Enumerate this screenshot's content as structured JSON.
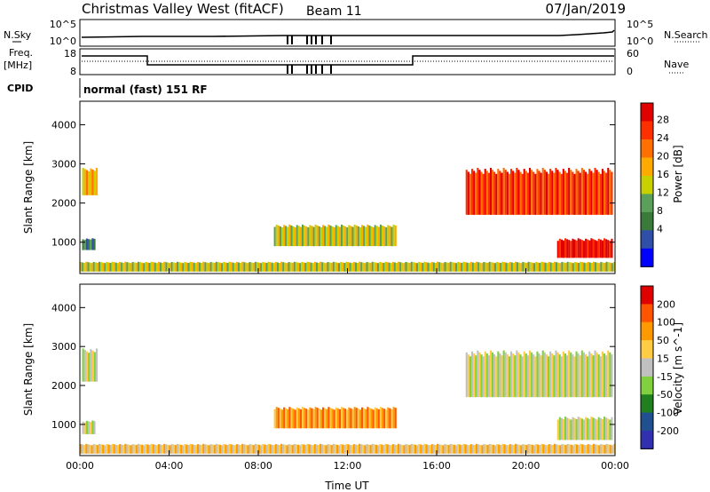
{
  "header": {
    "site": "Christmas Valley West (fitACF)",
    "beam": "Beam 11",
    "date": "07/Jan/2019"
  },
  "status": {
    "nsky_label": "N.Sky",
    "nsky_ticks": [
      "10^5",
      "10^0"
    ],
    "nsearch_label": "N.Search",
    "nsearch_ticks": [
      "10^5",
      "10^0"
    ],
    "freq_label": "Freq.",
    "freq_unit": "[MHz]",
    "freq_ticks": [
      "18",
      "8"
    ],
    "nave_label": "Nave",
    "nave_ticks": [
      "60",
      "0"
    ],
    "cpid_label": "CPID",
    "cpid_text": "normal (fast) 151 RF"
  },
  "colors": {
    "power": [
      "#0000ff",
      "#2f4fa8",
      "#3a7a3a",
      "#5aa05a",
      "#c8d000",
      "#ffaa00",
      "#ff7000",
      "#ff3000",
      "#e00000"
    ],
    "velocity": [
      "#3030b0",
      "#205090",
      "#208020",
      "#80d040",
      "#c0c0c0",
      "#ffcc44",
      "#ff9900",
      "#ff5500",
      "#e00000"
    ],
    "ground": "#bbbbbb"
  },
  "chart_data": [
    {
      "type": "heatmap",
      "name": "power",
      "ylabel": "Slant Range [km]",
      "ylim": [
        200,
        4600
      ],
      "y_ticks": [
        "4000",
        "3000",
        "2000",
        "1000"
      ],
      "x_ticks": [
        "00:00",
        "04:00",
        "08:00",
        "12:00",
        "16:00",
        "20:00",
        "00:00"
      ],
      "colorbar_label": "Power [dB]",
      "colorbar_ticks": [
        "28",
        "24",
        "20",
        "16",
        "12",
        "8",
        "4"
      ],
      "regions": [
        {
          "t0": 0.1,
          "t1": 0.8,
          "r0": 2200,
          "r1": 2900,
          "level": 5
        },
        {
          "t0": 0.1,
          "t1": 0.7,
          "r0": 800,
          "r1": 1100,
          "level": 2
        },
        {
          "t0": 0.0,
          "t1": 24.0,
          "r0": 250,
          "r1": 500,
          "level": 4
        },
        {
          "t0": 8.7,
          "t1": 14.2,
          "r0": 900,
          "r1": 1450,
          "level": 4
        },
        {
          "t0": 17.3,
          "t1": 23.9,
          "r0": 1700,
          "r1": 2900,
          "level": 7
        },
        {
          "t0": 21.4,
          "t1": 23.9,
          "r0": 600,
          "r1": 1100,
          "level": 8
        }
      ]
    },
    {
      "type": "heatmap",
      "name": "velocity",
      "ylabel": "Slant Range [km]",
      "ylim": [
        200,
        4600
      ],
      "y_ticks": [
        "4000",
        "3000",
        "2000",
        "1000"
      ],
      "x_ticks": [
        "00:00",
        "04:00",
        "08:00",
        "12:00",
        "16:00",
        "20:00",
        "00:00"
      ],
      "xlabel": "Time UT",
      "colorbar_label": "Velocity [m s^-1]",
      "colorbar_ticks": [
        "200",
        "100",
        "50",
        "15",
        "-15",
        "-50",
        "-100",
        "-200"
      ],
      "regions": [
        {
          "t0": 0.1,
          "t1": 0.8,
          "r0": 2100,
          "r1": 2950,
          "level": 4
        },
        {
          "t0": 0.1,
          "t1": 0.7,
          "r0": 750,
          "r1": 1100,
          "level": 4
        },
        {
          "t0": 0.0,
          "t1": 24.0,
          "r0": 250,
          "r1": 500,
          "level": 5
        },
        {
          "t0": 8.7,
          "t1": 14.2,
          "r0": 900,
          "r1": 1450,
          "level": 6
        },
        {
          "t0": 17.3,
          "t1": 23.9,
          "r0": 1700,
          "r1": 2900,
          "level": 4
        },
        {
          "t0": 21.4,
          "t1": 23.9,
          "r0": 600,
          "r1": 1200,
          "level": 4
        }
      ]
    }
  ]
}
